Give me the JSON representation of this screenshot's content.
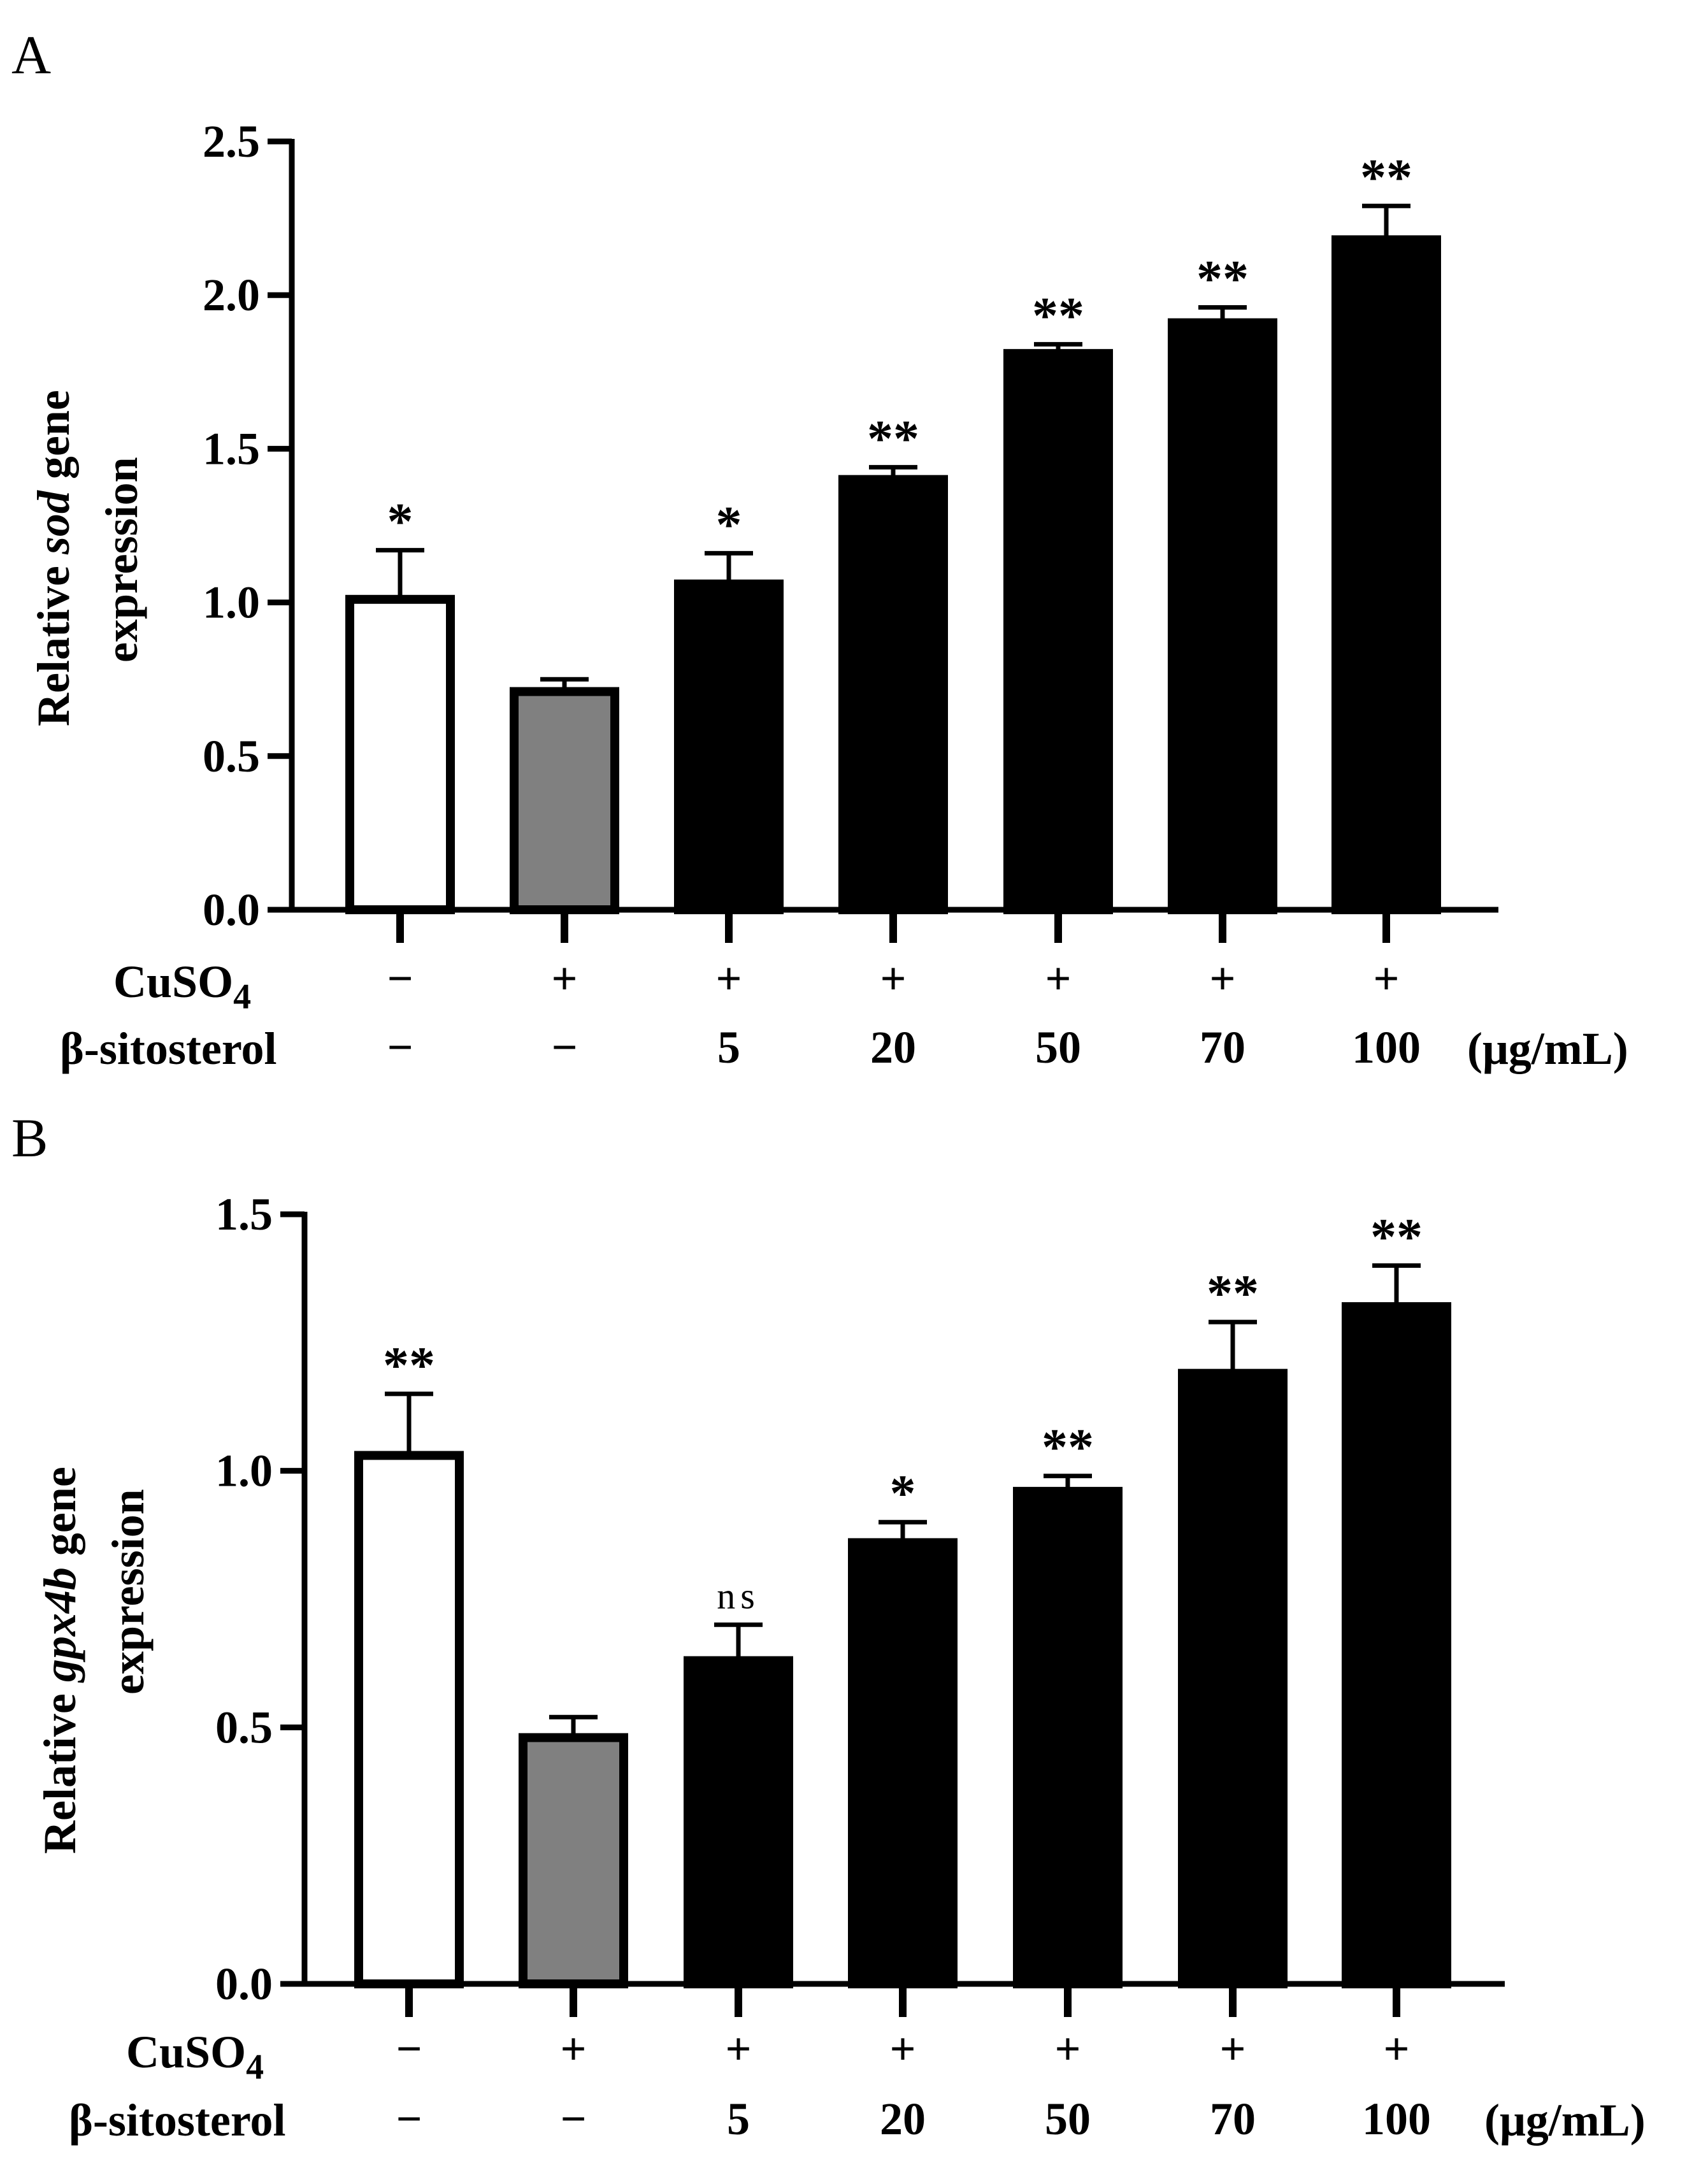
{
  "chart_data": [
    {
      "type": "bar",
      "panel": "A",
      "ylabel_prefix": "Relative ",
      "ylabel_gene": "sod",
      "ylabel_suffix": " gene",
      "ylabel_line2": "expression",
      "ylim": [
        0,
        2.5
      ],
      "yticks": [
        0.0,
        0.5,
        1.0,
        1.5,
        2.0,
        2.5
      ],
      "ytick_labels": [
        "0.0",
        "0.5",
        "1.0",
        "1.5",
        "2.0",
        "2.5"
      ],
      "values": [
        1.01,
        0.71,
        1.06,
        1.4,
        1.81,
        1.91,
        2.18
      ],
      "errors": [
        0.16,
        0.04,
        0.1,
        0.04,
        0.03,
        0.05,
        0.11
      ],
      "significance": [
        "*",
        "",
        "*",
        "**",
        "**",
        "**",
        "**"
      ],
      "bar_fill": [
        "#ffffff",
        "#808080",
        "#000000",
        "#000000",
        "#000000",
        "#000000",
        "#000000"
      ],
      "cuso4_label": "CuSO",
      "cuso4_subscript": "4",
      "cuso4": [
        "−",
        "+",
        "+",
        "+",
        "+",
        "+",
        "+"
      ],
      "sitosterol_label": "β-sitosterol",
      "sitosterol": [
        "−",
        "−",
        "5",
        "20",
        "50",
        "70",
        "100"
      ],
      "unit": "(μg/mL)"
    },
    {
      "type": "bar",
      "panel": "B",
      "ylabel_prefix": "Relative ",
      "ylabel_gene": "gpx4b",
      "ylabel_suffix": " gene",
      "ylabel_line2": "expression",
      "ylim": [
        0,
        1.5
      ],
      "yticks": [
        0.0,
        0.5,
        1.0,
        1.5
      ],
      "ytick_labels": [
        "0.0",
        "0.5",
        "1.0",
        "1.5"
      ],
      "values": [
        1.03,
        0.48,
        0.63,
        0.86,
        0.96,
        1.19,
        1.32
      ],
      "errors": [
        0.12,
        0.04,
        0.07,
        0.04,
        0.03,
        0.1,
        0.08
      ],
      "significance": [
        "**",
        "",
        "ns",
        "*",
        "**",
        "**",
        "**"
      ],
      "bar_fill": [
        "#ffffff",
        "#808080",
        "#000000",
        "#000000",
        "#000000",
        "#000000",
        "#000000"
      ],
      "cuso4_label": "CuSO",
      "cuso4_subscript": "4",
      "cuso4": [
        "−",
        "+",
        "+",
        "+",
        "+",
        "+",
        "+"
      ],
      "sitosterol_label": "β-sitosterol",
      "sitosterol": [
        "−",
        "−",
        "5",
        "20",
        "50",
        "70",
        "100"
      ],
      "unit": "(μg/mL)"
    }
  ]
}
